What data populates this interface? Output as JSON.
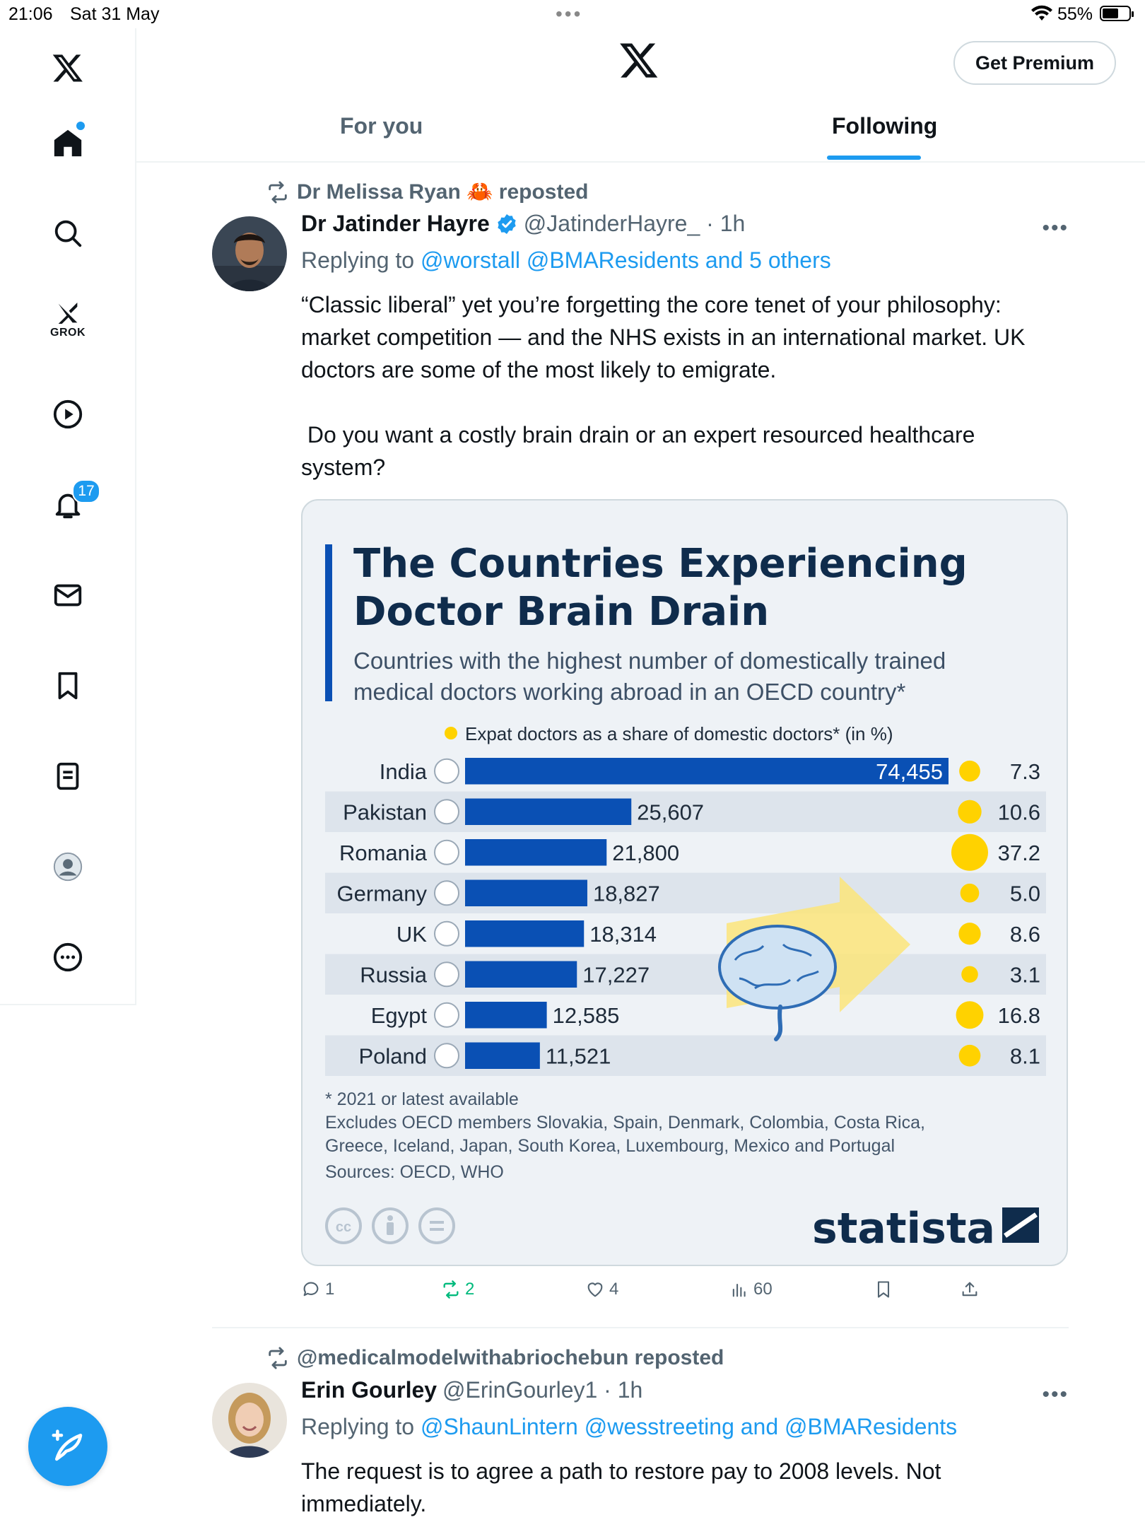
{
  "status_bar": {
    "time": "21:06",
    "date": "Sat 31 May",
    "battery": "55%"
  },
  "sidebar": {
    "items": [
      {
        "icon": "home-icon"
      },
      {
        "icon": "search-icon"
      },
      {
        "icon": "grok-icon",
        "label": "GROK"
      },
      {
        "icon": "play-icon"
      },
      {
        "icon": "bell-icon",
        "badge": "17"
      },
      {
        "icon": "mail-icon"
      },
      {
        "icon": "bookmark-icon"
      },
      {
        "icon": "list-icon"
      },
      {
        "icon": "profile-icon"
      },
      {
        "icon": "more-icon"
      }
    ],
    "compose_icon": "compose-icon"
  },
  "header": {
    "premium_label": "Get Premium",
    "tabs": [
      {
        "label": "For you"
      },
      {
        "label": "Following"
      }
    ]
  },
  "posts": [
    {
      "reposted_by": "Dr Melissa Ryan 🦀 reposted",
      "name": "Dr Jatinder Hayre",
      "handle_time": "@JatinderHayre_ · 1h",
      "replying_label": "Replying to ",
      "replying_links": "@worstall @BMAResidents and 5 others",
      "text_1": "“Classic liberal” yet you’re forgetting the core tenet of your philosophy: market competition — and the NHS exists in an international market. UK doctors are some of the most likely to emigrate.",
      "text_2": " Do you want a costly brain drain or an expert resourced healthcare system?",
      "replies": "1",
      "reposts": "2",
      "likes": "4",
      "views": "60"
    },
    {
      "reposted_by": "@medicalmodelwithabriochebun reposted",
      "name": "Erin Gourley",
      "handle_time": "@ErinGourley1 · 1h",
      "replying_label": "Replying to ",
      "replying_links": "@ShaunLintern @wesstreeting and @BMAResidents",
      "text_1": "The request is to agree a path to restore pay to 2008 levels. Not immediately."
    }
  ],
  "chart_data": {
    "type": "bar",
    "title": "The Countries Experiencing Doctor Brain Drain",
    "title_line1": "The Countries Experiencing",
    "title_line2": "Doctor Brain Drain",
    "subtitle_line1": "Countries with the highest number of domestically trained",
    "subtitle_line2": "medical doctors working abroad in an OECD country*",
    "legend": "Expat doctors as a share of domestic doctors* (in %)",
    "categories": [
      "India",
      "Pakistan",
      "Romania",
      "Germany",
      "UK",
      "Russia",
      "Egypt",
      "Poland"
    ],
    "value_labels": [
      "74,455",
      "25,607",
      "21,800",
      "18,827",
      "18,314",
      "17,227",
      "12,585",
      "11,521"
    ],
    "values": [
      74455,
      25607,
      21800,
      18827,
      18314,
      17227,
      12585,
      11521
    ],
    "share_labels": [
      "7.3",
      "10.6",
      "37.2",
      "5.0",
      "8.6",
      "3.1",
      "16.8",
      "8.1"
    ],
    "shares": [
      7.3,
      10.6,
      37.2,
      5.0,
      8.6,
      3.1,
      16.8,
      8.1
    ],
    "footnote_1": "* 2021 or latest available",
    "footnote_2": "Excludes OECD members Slovakia, Spain, Denmark, Colombia, Costa Rica,",
    "footnote_3": "Greece, Iceland, Japan, South Korea, Luxembourg, Mexico and Portugal",
    "footnote_4": "Sources: OECD, WHO",
    "brand": "statista",
    "colors": {
      "bar": "#0a50b4",
      "dot": "#ffd200",
      "title": "#0f2c4c",
      "accent": "#0a50b4"
    }
  }
}
